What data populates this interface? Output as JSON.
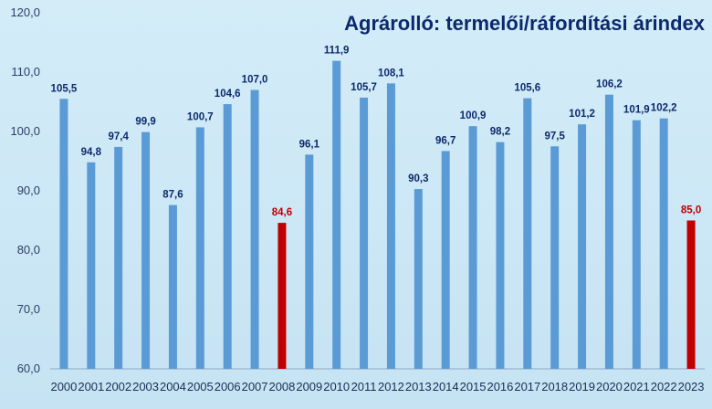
{
  "chart_data": {
    "type": "bar",
    "title": "Agrárolló: termelői/ráfordítási árindex",
    "xlabel": "",
    "ylabel": "",
    "ylim": [
      60,
      120
    ],
    "yticks": [
      "60,0",
      "70,0",
      "80,0",
      "90,0",
      "100,0",
      "110,0",
      "120,0"
    ],
    "grid": false,
    "categories": [
      "2000",
      "2001",
      "2002",
      "2003",
      "2004",
      "2005",
      "2006",
      "2007",
      "2008",
      "2009",
      "2010",
      "2011",
      "2012",
      "2013",
      "2014",
      "2015",
      "2016",
      "2017",
      "2018",
      "2019",
      "2020",
      "2021",
      "2022",
      "2023"
    ],
    "values": [
      105.5,
      94.8,
      97.4,
      99.9,
      87.6,
      100.7,
      104.6,
      107.0,
      84.6,
      96.1,
      111.9,
      105.7,
      108.1,
      90.3,
      96.7,
      100.9,
      98.2,
      105.6,
      97.5,
      101.2,
      106.2,
      101.9,
      102.2,
      85.0
    ],
    "value_labels": [
      "105,5",
      "94,8",
      "97,4",
      "99,9",
      "87,6",
      "100,7",
      "104,6",
      "107,0",
      "84,6",
      "96,1",
      "111,9",
      "105,7",
      "108,1",
      "90,3",
      "96,7",
      "100,9",
      "98,2",
      "105,6",
      "97,5",
      "101,2",
      "106,2",
      "101,9",
      "102,2",
      "85,0"
    ],
    "highlight_categories": [
      "2008",
      "2023"
    ],
    "colors": {
      "bar": "#5b9bd5",
      "highlight_bar": "#c00000",
      "label": "#0c2a6b",
      "highlight_label": "#c00000",
      "title": "#0c2a6b"
    }
  }
}
